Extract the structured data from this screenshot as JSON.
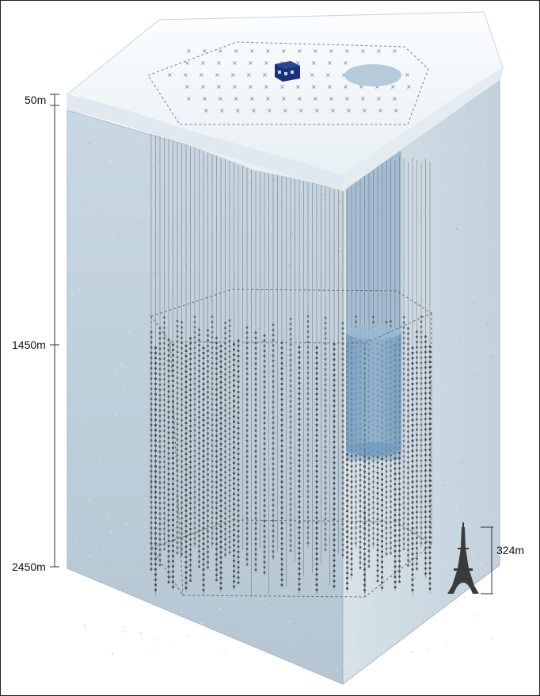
{
  "depth_labels": {
    "surface": "50m",
    "top": "1450m",
    "bottom": "2450m"
  },
  "scale_reference": {
    "height_label": "324m",
    "icon": "eiffel-tower-icon"
  },
  "colors": {
    "ice_front": "#bccbd6",
    "ice_side": "#c8d6df",
    "snow_top": "#f1f6f9",
    "string": "#6a6a6a",
    "dom": "#3e3e3e",
    "deepcore": "#4d7fa8",
    "icecube_lab": "#1b2f7a"
  }
}
